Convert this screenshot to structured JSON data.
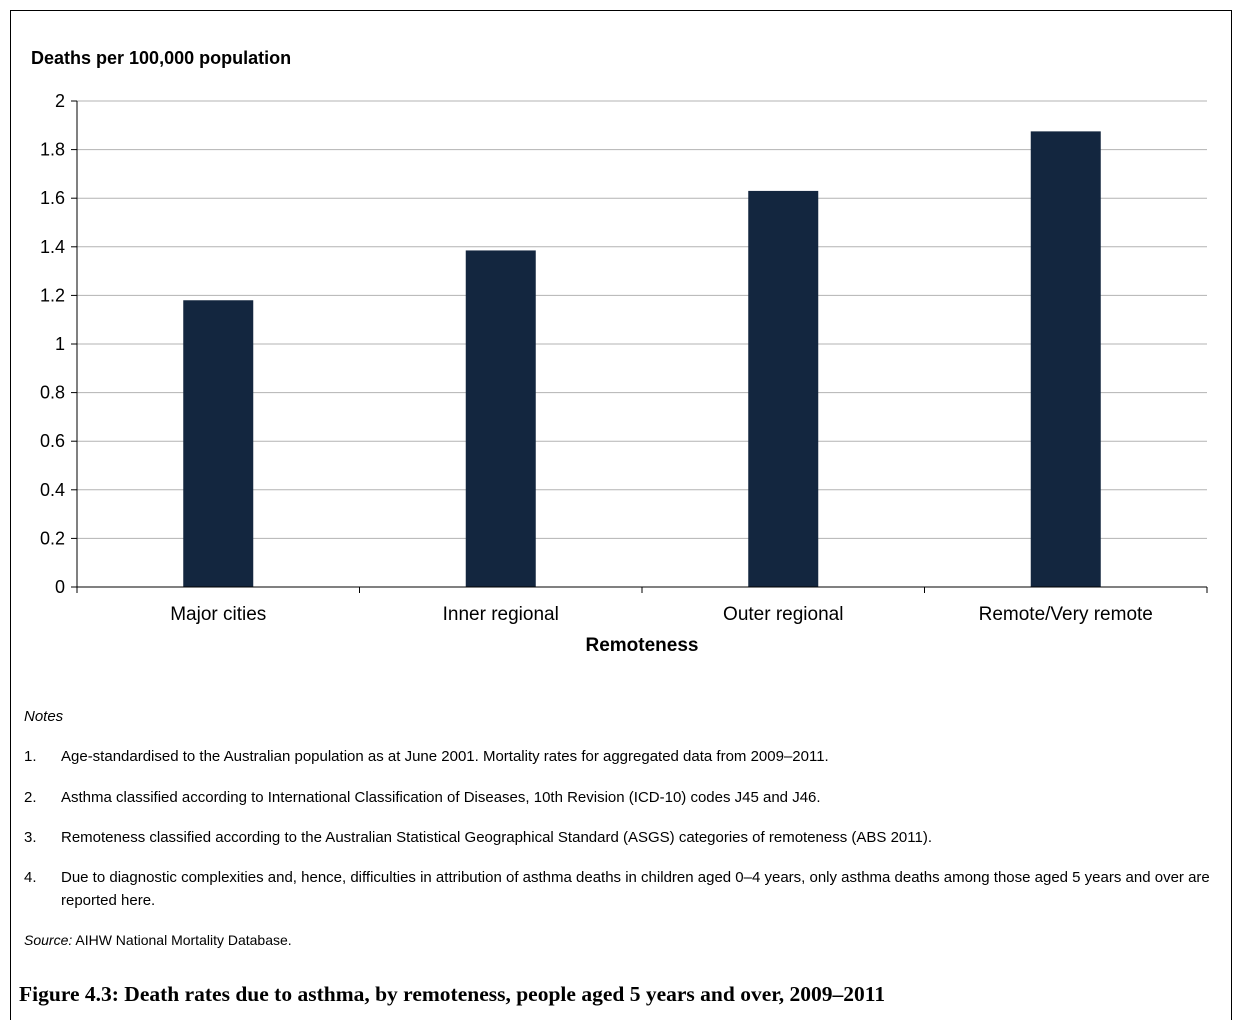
{
  "chart_data": {
    "type": "bar",
    "ylabel": "Deaths per 100,000 population",
    "xlabel": "Remoteness",
    "categories": [
      "Major cities",
      "Inner regional",
      "Outer regional",
      "Remote/Very remote"
    ],
    "values": [
      1.18,
      1.385,
      1.63,
      1.875
    ],
    "ylim": [
      0,
      2
    ],
    "yticks": [
      "0",
      "0.2",
      "0.4",
      "0.6",
      "0.8",
      "1",
      "1.2",
      "1.4",
      "1.6",
      "1.8",
      "2"
    ],
    "grid": true,
    "bar_color": "#13263f",
    "gridline_color": "#b3b3b3"
  },
  "notes": {
    "label": "Notes",
    "items": [
      {
        "num": "1.",
        "text": "Age-standardised to the Australian population as at June 2001. Mortality rates for aggregated data from 2009–2011."
      },
      {
        "num": "2.",
        "text": "Asthma classified according to International Classification of Diseases, 10th Revision (ICD-10) codes J45 and J46."
      },
      {
        "num": "3.",
        "text": "Remoteness classified according to the Australian Statistical Geographical Standard (ASGS) categories of remoteness (ABS 2011)."
      },
      {
        "num": "4.",
        "text": "Due to diagnostic complexities and, hence, difficulties in attribution of asthma deaths in children aged 0–4 years, only asthma deaths among those aged 5 years and over are reported here."
      }
    ]
  },
  "source": {
    "label": "Source:",
    "text": " AIHW National Mortality Database."
  },
  "caption": "Figure 4.3: Death rates due to asthma, by remoteness, people aged 5 years and over, 2009–2011"
}
